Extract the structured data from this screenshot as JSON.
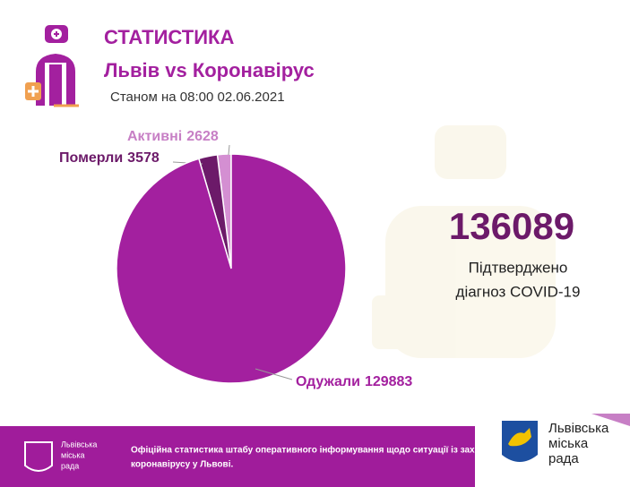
{
  "chart_data": {
    "type": "pie",
    "title": "СТАТИСТИКА",
    "subtitle": "Львів vs Коронавірус",
    "date": "Станом на 08:00 02.06.2021",
    "categories": [
      "Активні",
      "Померли",
      "Одужали"
    ],
    "values": [
      2628,
      3578,
      129883
    ],
    "colors": [
      "#d48fd2",
      "#6c1a69",
      "#a3209f"
    ],
    "total": 136089,
    "total_label": [
      "Підтверджено",
      "діагноз COVID-19"
    ]
  },
  "footer": {
    "text": [
      "Офіційна статистика штабу оперативного інформування щодо ситуації із зах",
      "коронавірусу у Львові."
    ],
    "logo_text": [
      "Львівська",
      "міська",
      "рада"
    ]
  }
}
